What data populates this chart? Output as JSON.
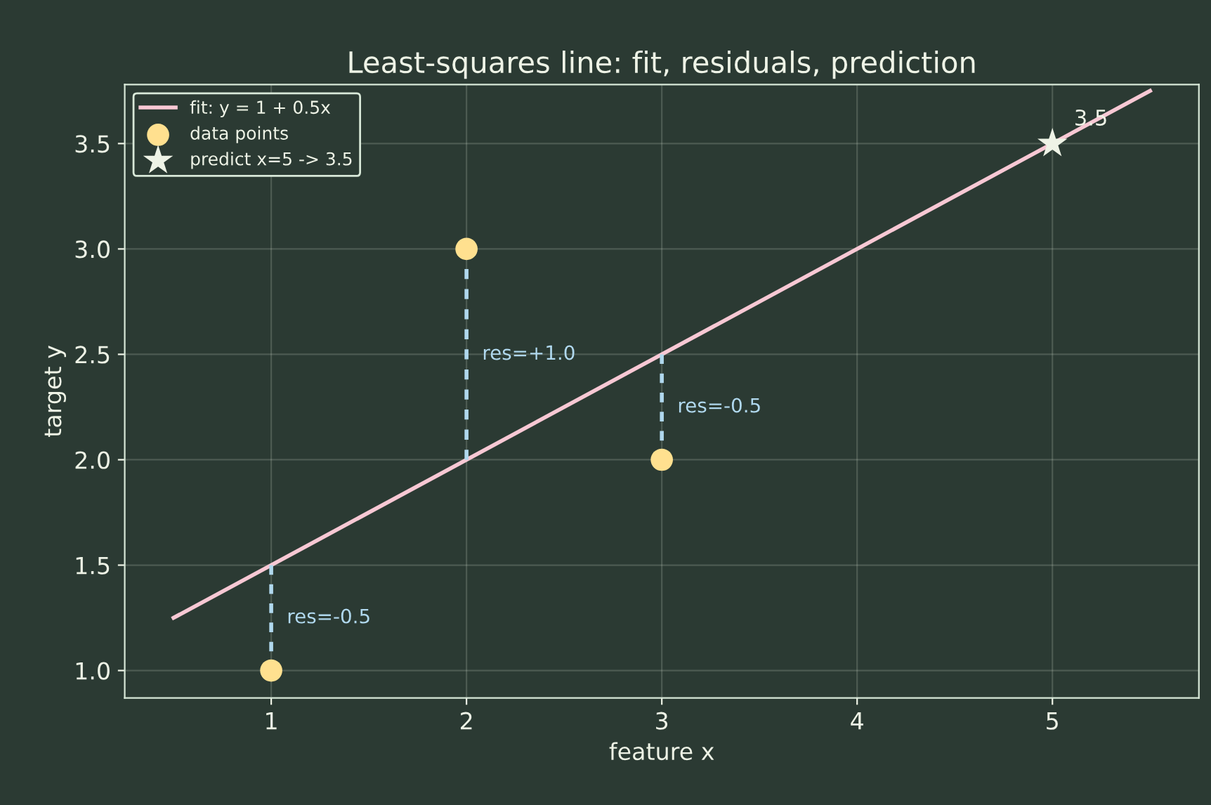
{
  "chart_data": {
    "type": "line",
    "title": "Least-squares line: fit, residuals, prediction",
    "xlabel": "feature x",
    "ylabel": "target y",
    "xlim": [
      0.25,
      5.75
    ],
    "ylim": [
      0.87,
      3.78
    ],
    "xticks": [
      1,
      2,
      3,
      4,
      5
    ],
    "yticks": [
      {
        "value": 1,
        "label": "1.0"
      },
      1.5,
      {
        "value": 2,
        "label": "2.0"
      },
      2.5,
      {
        "value": 3,
        "label": "3.0"
      },
      3.5
    ],
    "grid": true,
    "legend": "top left",
    "series": [
      {
        "name": "fit: y = 1 + 0.5x",
        "color": "#f8c8d4",
        "x": [
          0.5,
          5.5
        ],
        "values": [
          1.25,
          3.75
        ],
        "line_style": "solid"
      },
      {
        "type": "line",
        "color": "#b0d8ee",
        "x": [
          1,
          1
        ],
        "values": [
          1.0,
          1.5
        ],
        "line_style": "dashed"
      },
      {
        "type": "line",
        "color": "#b0d8ee",
        "x": [
          2,
          2
        ],
        "values": [
          3.0,
          2.0
        ],
        "line_style": "dashed"
      },
      {
        "type": "line",
        "color": "#b0d8ee",
        "x": [
          3,
          3
        ],
        "values": [
          2.0,
          2.5
        ],
        "line_style": "dashed"
      },
      {
        "type": "scatter",
        "name": "data points",
        "color": "#ffe08f",
        "marker": "circle",
        "x": [
          1,
          2,
          3
        ],
        "values": [
          1.0,
          3.0,
          2.0
        ]
      },
      {
        "type": "scatter",
        "name": "predict x=5 -> 3.5",
        "color": "#eef3e6",
        "marker": "star",
        "x": [
          5
        ],
        "values": [
          3.5
        ]
      }
    ],
    "annotations": [
      {
        "text": "res=-0.5",
        "x": 1,
        "y": 1.25
      },
      {
        "text": "res=+1.0",
        "x": 2,
        "y": 2.5
      },
      {
        "text": "res=-0.5",
        "x": 3,
        "y": 2.25
      },
      {
        "text": "3.5",
        "x": 5,
        "y": 3.5
      }
    ]
  }
}
